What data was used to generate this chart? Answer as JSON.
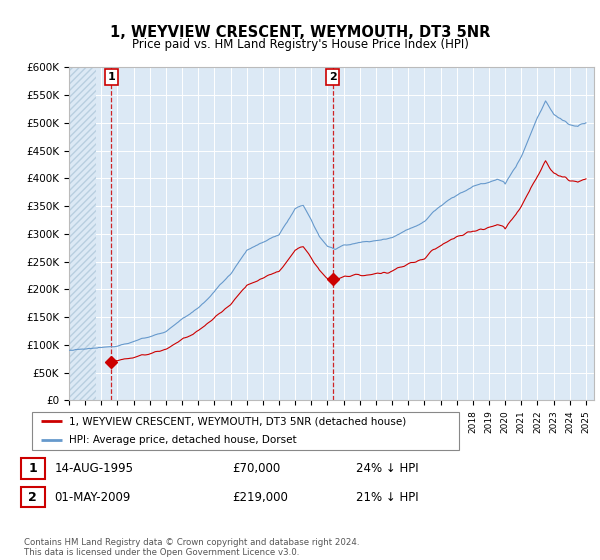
{
  "title": "1, WEYVIEW CRESCENT, WEYMOUTH, DT3 5NR",
  "subtitle": "Price paid vs. HM Land Registry's House Price Index (HPI)",
  "ylim": [
    0,
    600000
  ],
  "yticks": [
    0,
    50000,
    100000,
    150000,
    200000,
    250000,
    300000,
    350000,
    400000,
    450000,
    500000,
    550000,
    600000
  ],
  "ytick_labels": [
    "£0",
    "£50K",
    "£100K",
    "£150K",
    "£200K",
    "£250K",
    "£300K",
    "£350K",
    "£400K",
    "£450K",
    "£500K",
    "£550K",
    "£600K"
  ],
  "xlim_start": 1993.0,
  "xlim_end": 2025.5,
  "sale1_year": 1995.62,
  "sale1_price": 70000,
  "sale2_year": 2009.33,
  "sale2_price": 219000,
  "sale1_date": "14-AUG-1995",
  "sale1_amount": "£70,000",
  "sale1_hpi": "24% ↓ HPI",
  "sale2_date": "01-MAY-2009",
  "sale2_amount": "£219,000",
  "sale2_hpi": "21% ↓ HPI",
  "property_line_color": "#cc0000",
  "hpi_line_color": "#6699cc",
  "background_color": "#dce9f5",
  "hatch_color": "#b8cfe0",
  "grid_color": "#ffffff",
  "legend_label_property": "1, WEYVIEW CRESCENT, WEYMOUTH, DT3 5NR (detached house)",
  "legend_label_hpi": "HPI: Average price, detached house, Dorset",
  "footer": "Contains HM Land Registry data © Crown copyright and database right 2024.\nThis data is licensed under the Open Government Licence v3.0."
}
